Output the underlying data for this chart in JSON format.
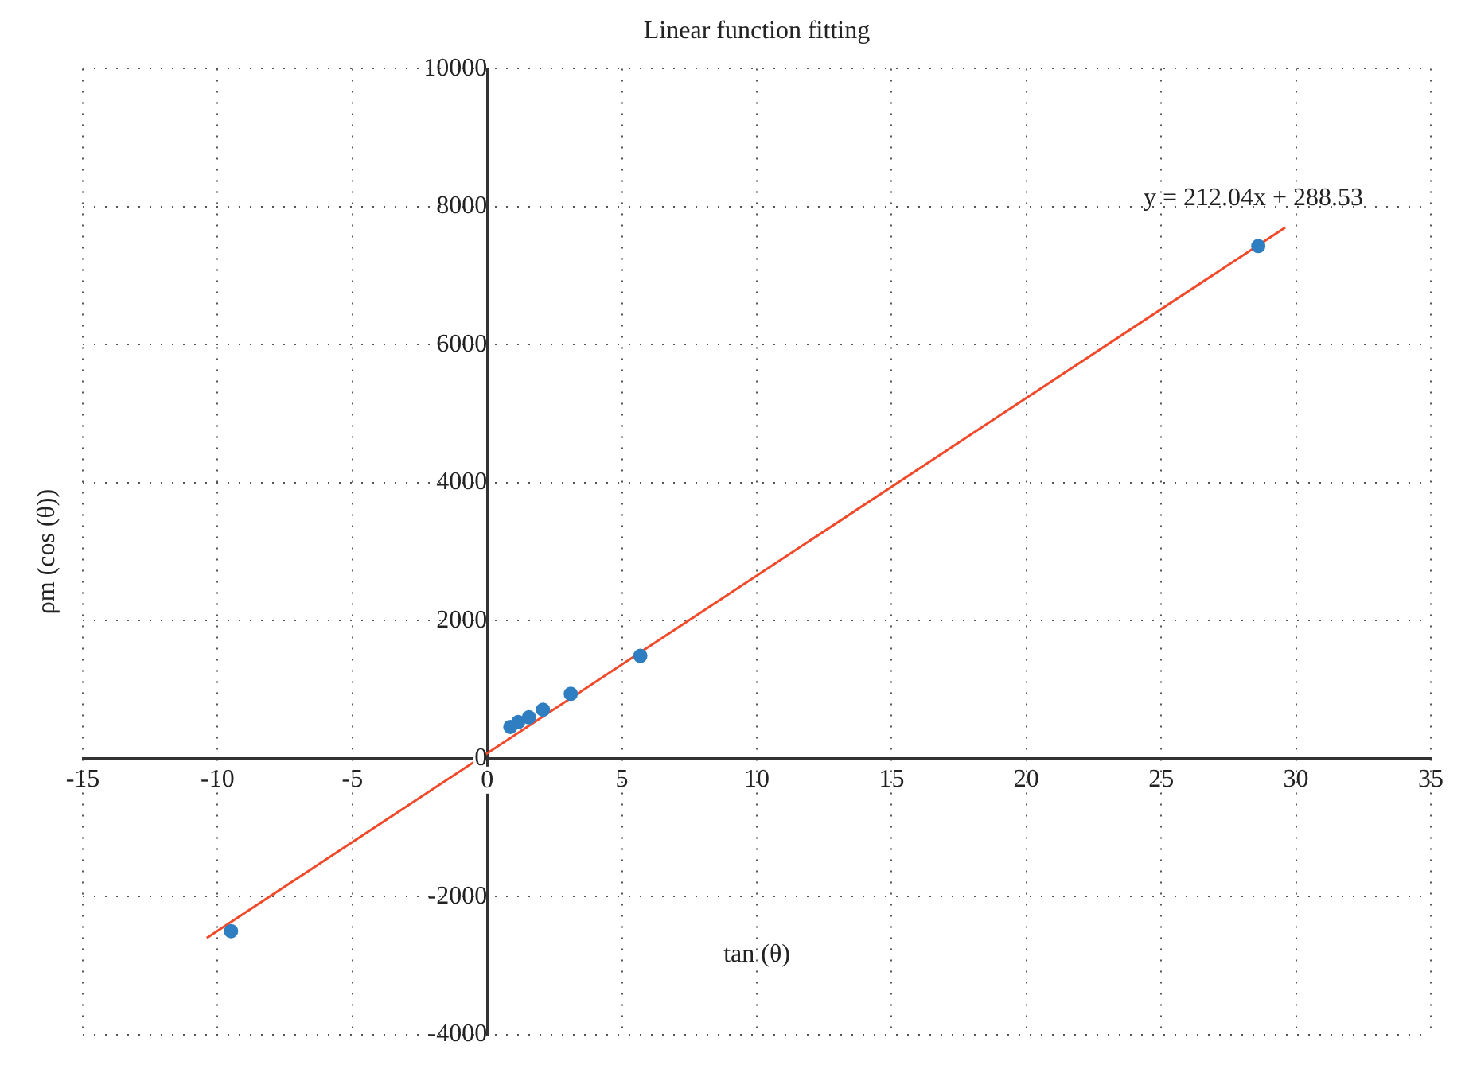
{
  "chart_data": {
    "type": "scatter",
    "title": "Linear function fitting",
    "xlabel": "tan (θ)",
    "ylabel": "ρm (cos (θ))",
    "annotations": [
      "y = 212.04x + 288.53"
    ],
    "series": [
      {
        "type": "scatter",
        "color": "#2f7ec1",
        "x": [
          -9.5,
          0.86,
          1.15,
          1.55,
          2.07,
          3.1,
          5.68,
          28.6
        ],
        "values": [
          -2500,
          460,
          530,
          600,
          710,
          940,
          1490,
          7430
        ]
      },
      {
        "type": "line",
        "color": "#f04a2a",
        "marker": "none",
        "x": [
          -10.4,
          29.6
        ],
        "values": [
          -2600,
          7700
        ]
      }
    ],
    "xlim": [
      -15,
      35
    ],
    "xticks": [
      -15,
      -10,
      -5,
      0,
      5,
      10,
      15,
      20,
      25,
      30,
      35
    ],
    "ylim": [
      -4000,
      10000
    ],
    "yticks": [
      -4000,
      -2000,
      0,
      2000,
      4000,
      6000,
      8000,
      10000
    ],
    "grid": true,
    "legend": false,
    "marker": "circle"
  }
}
